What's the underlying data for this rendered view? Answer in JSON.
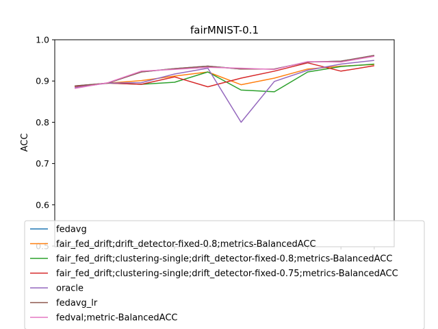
{
  "chart_data": {
    "type": "line",
    "title": "fairMNIST-0.1",
    "xlabel": "",
    "ylabel": "ACC",
    "ylim": [
      0.5,
      1.0
    ],
    "yticks": [
      "0.5",
      "0.6",
      "0.7",
      "0.8",
      "0.9",
      "1.0"
    ],
    "x": [
      0,
      1,
      2,
      3,
      4,
      5,
      6,
      7,
      8,
      9
    ],
    "xtick_labels": [],
    "grid": false,
    "legend_position": "lower-center, overlapping plot",
    "series": [
      {
        "name": "fedavg",
        "color": "#1f77b4",
        "values": [
          0.888,
          0.895,
          0.922,
          0.93,
          0.936,
          0.929,
          0.929,
          0.946,
          0.948,
          0.962
        ]
      },
      {
        "name": "fair_fed_drift;drift_detector-fixed-0.8;metrics-BalancedACC",
        "color": "#ff7f0e",
        "values": [
          0.887,
          0.895,
          0.901,
          0.912,
          0.922,
          0.891,
          0.907,
          0.929,
          0.936,
          0.94
        ]
      },
      {
        "name": "fair_fed_drift;clustering-single;drift_detector-fixed-0.8;metrics-BalancedACC",
        "color": "#2ca02c",
        "values": [
          0.887,
          0.895,
          0.892,
          0.897,
          0.922,
          0.878,
          0.874,
          0.922,
          0.935,
          0.941
        ]
      },
      {
        "name": "fair_fed_drift;clustering-single;drift_detector-fixed-0.75;metrics-BalancedACC",
        "color": "#d62728",
        "values": [
          0.887,
          0.895,
          0.892,
          0.91,
          0.886,
          0.907,
          0.924,
          0.944,
          0.924,
          0.937
        ]
      },
      {
        "name": "oracle",
        "color": "#9467bd",
        "values": [
          0.884,
          0.895,
          0.896,
          0.917,
          0.931,
          0.8,
          0.899,
          0.926,
          0.941,
          0.95
        ]
      },
      {
        "name": "fedavg_lr",
        "color": "#8c564b",
        "values": [
          0.888,
          0.895,
          0.922,
          0.93,
          0.936,
          0.929,
          0.929,
          0.946,
          0.948,
          0.962
        ]
      },
      {
        "name": "fedval;metric-BalancedACC",
        "color": "#e377c2",
        "values": [
          0.882,
          0.896,
          0.924,
          0.928,
          0.933,
          0.931,
          0.928,
          0.947,
          0.946,
          0.96
        ]
      }
    ]
  }
}
